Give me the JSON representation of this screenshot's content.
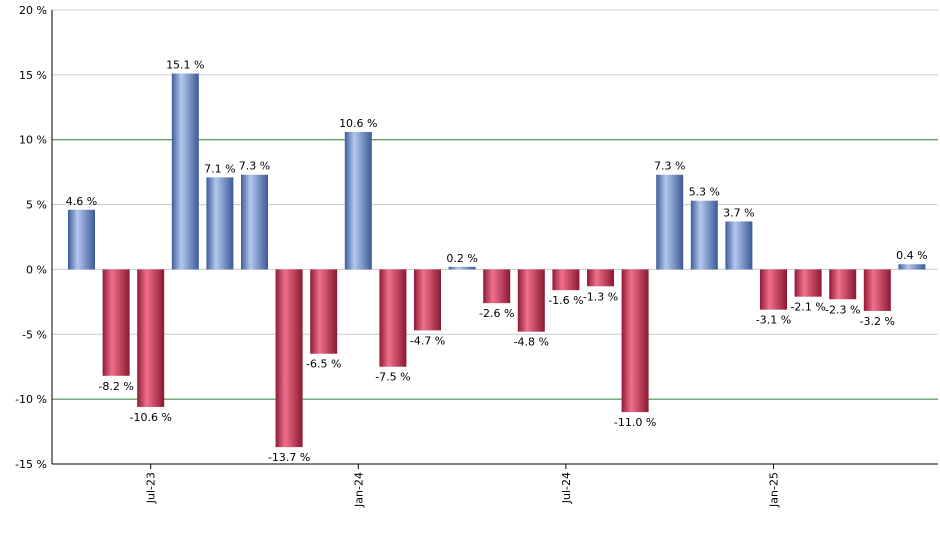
{
  "chart_data": {
    "type": "bar",
    "title": "",
    "xlabel": "",
    "ylabel": "",
    "ylim": [
      -15,
      20
    ],
    "yticks": [
      20,
      15,
      10,
      5,
      0,
      -5,
      -10,
      -15
    ],
    "ytick_labels": [
      "20 %",
      "15 %",
      "10 %",
      "5 %",
      "0 %",
      "-5 %",
      "-10 %",
      "-15 %"
    ],
    "highlight_lines": [
      10,
      -10
    ],
    "grid": true,
    "values": [
      4.6,
      -8.2,
      -10.6,
      15.1,
      7.1,
      7.3,
      -13.7,
      -6.5,
      10.6,
      -7.5,
      -4.7,
      0.2,
      -2.6,
      -4.8,
      -1.6,
      -1.3,
      -11.0,
      7.3,
      5.3,
      3.7,
      -3.1,
      -2.1,
      -2.3,
      -3.2,
      0.4
    ],
    "value_labels": [
      "4.6 %",
      "-8.2 %",
      "-10.6 %",
      "15.1 %",
      "7.1 %",
      "7.3 %",
      "-13.7 %",
      "-6.5 %",
      "10.6 %",
      "-7.5 %",
      "-4.7 %",
      "0.2 %",
      "-2.6 %",
      "-4.8 %",
      "-1.6 %",
      "-1.3 %",
      "-11.0 %",
      "7.3 %",
      "5.3 %",
      "3.7 %",
      "-3.1 %",
      "-2.1 %",
      "-2.3 %",
      "-3.2 %",
      "0.4 %"
    ],
    "xtick_labels": [
      {
        "label": "Jul-23",
        "index": 2
      },
      {
        "label": "Jan-24",
        "index": 8
      },
      {
        "label": "Jul-24",
        "index": 14
      },
      {
        "label": "Jan-25",
        "index": 20
      }
    ],
    "colors": {
      "positive": "#6f93d6",
      "negative": "#c8284c",
      "highlight_line": "#2e7d32",
      "grid": "#cccccc",
      "axis": "#000000"
    }
  }
}
